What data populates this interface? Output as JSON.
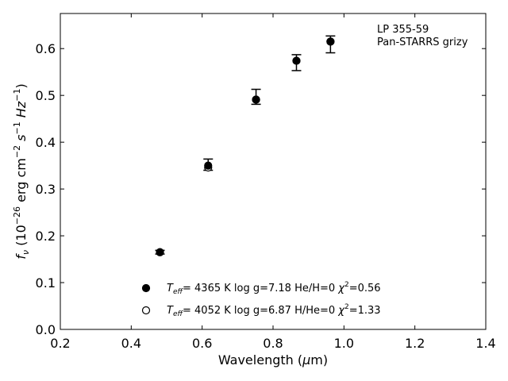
{
  "chart_data": {
    "type": "scatter",
    "title": "",
    "xlabel": "Wavelength (",
    "xlabel_symbol": "μ",
    "xlabel_tail": "m)",
    "ylabel_main": "f",
    "ylabel_sub": "ν",
    "ylabel_rest": " (10",
    "ylabel_exp": "−26",
    "ylabel_units": " erg cm",
    "ylabel_units_exp1": "−2",
    "ylabel_units2": " s",
    "ylabel_units_exp2": "−1",
    "ylabel_units3": " Hz",
    "ylabel_units_exp3": "−1",
    "ylabel_close": ")",
    "xlim": [
      0.2,
      1.4
    ],
    "ylim": [
      0.0,
      0.675
    ],
    "xticks": [
      "0.2",
      "0.4",
      "0.6",
      "0.8",
      "1.0",
      "1.2",
      "1.4"
    ],
    "yticks": [
      "0.0",
      "0.1",
      "0.2",
      "0.3",
      "0.4",
      "0.5",
      "0.6"
    ],
    "annotation": [
      "LP 355-59",
      "Pan-STARRS grizy"
    ],
    "observed": {
      "x": [
        0.481,
        0.617,
        0.752,
        0.866,
        0.962
      ],
      "y": [
        0.165,
        0.352,
        0.497,
        0.57,
        0.609
      ],
      "yerr": [
        0.004,
        0.012,
        0.016,
        0.017,
        0.018
      ]
    },
    "series": [
      {
        "name_T": "T",
        "name_Tsub": "eff",
        "name_rest": "=  4365 K  log g=7.18  He/H=0  ",
        "name_chi": "χ",
        "name_chi_exp": "2",
        "name_chi_val": "=0.56",
        "marker": "filled",
        "x": [
          0.481,
          0.617,
          0.752,
          0.866,
          0.962
        ],
        "y": [
          0.165,
          0.35,
          0.491,
          0.574,
          0.615
        ]
      },
      {
        "name_T": "T",
        "name_Tsub": "eff",
        "name_rest": "=  4052 K  log g=6.87  H/He=0  ",
        "name_chi": "χ",
        "name_chi_exp": "2",
        "name_chi_val": "=1.33",
        "marker": "open",
        "x": [
          0.481,
          0.617,
          0.752,
          0.866,
          0.962
        ],
        "y": [
          0.165,
          0.346,
          0.491,
          0.574,
          0.615
        ]
      }
    ],
    "colors": {
      "marker": "#000000"
    },
    "grid": false,
    "legend_position": "lower-center"
  }
}
